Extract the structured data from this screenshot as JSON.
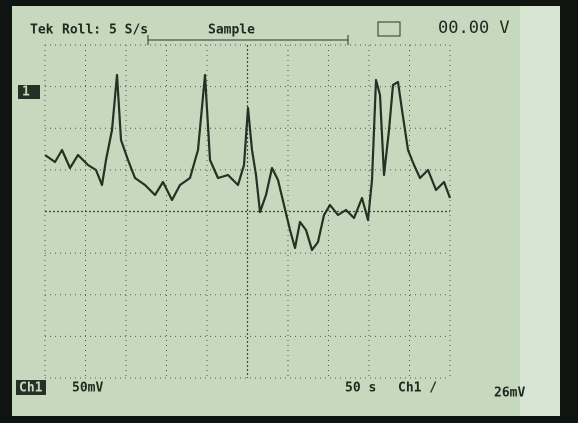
{
  "header": {
    "brand": "Tek",
    "mode": "Roll: 5 S/s",
    "acquisition": "Sample",
    "trigger_level": "00.00 V"
  },
  "markers": {
    "channel_ref": "1"
  },
  "footer": {
    "channel": "Ch1",
    "volts_div": "50mV",
    "time_div": "50 s",
    "trigger_source": "Ch1 /",
    "trigger_value": "26mV"
  }
}
